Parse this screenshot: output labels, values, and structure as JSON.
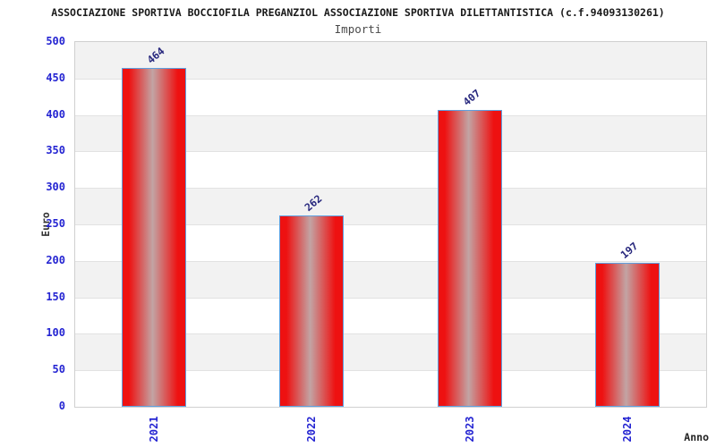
{
  "chart_data": {
    "type": "bar",
    "title": "ASSOCIAZIONE SPORTIVA BOCCIOFILA PREGANZIOL ASSOCIAZIONE SPORTIVA DILETTANTISTICA (c.f.94093130261)",
    "subtitle": "Importi",
    "xlabel": "Anno",
    "ylabel": "Euro",
    "categories": [
      "2021",
      "2022",
      "2023",
      "2024"
    ],
    "values": [
      464,
      262,
      407,
      197
    ],
    "ylim": [
      0,
      500
    ],
    "ytick_step": 50,
    "legend": "none",
    "grid": "alternating-horizontal-bands",
    "colors": {
      "bar_red": "#ee1111",
      "bar_center_highlight": "#c2a4a4",
      "bar_border": "#5e9fdf",
      "axis_tick_label": "#2525d2",
      "value_label": "#28287e",
      "band_gray": "#f2f2f2",
      "band_white": "#ffffff",
      "gridline": "#e2e2e2",
      "plot_border": "#d0d0d0",
      "title_color": "#1a1a1a",
      "subtitle_color": "#4a4a4a",
      "axis_title_color": "#333333"
    }
  }
}
